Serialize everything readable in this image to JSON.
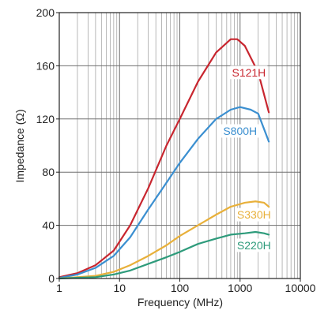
{
  "chart_data": {
    "type": "line",
    "title": "",
    "xlabel": "Frequency (MHz)",
    "ylabel": "Impedance (Ω)",
    "xscale": "log",
    "xlim": [
      1,
      10000
    ],
    "ylim": [
      0,
      200
    ],
    "grid": true,
    "legend": "inline labels",
    "x_ticks": [
      {
        "value": 1,
        "label": "1"
      },
      {
        "value": 10,
        "label": "10"
      },
      {
        "value": 100,
        "label": "100"
      },
      {
        "value": 1000,
        "label": "1000"
      },
      {
        "value": 10000,
        "label": "10000"
      }
    ],
    "y_ticks": [
      {
        "value": 0,
        "label": "0"
      },
      {
        "value": 40,
        "label": "40"
      },
      {
        "value": 80,
        "label": "80"
      },
      {
        "value": 120,
        "label": "120"
      },
      {
        "value": 160,
        "label": "160"
      },
      {
        "value": 200,
        "label": "200"
      }
    ],
    "series": [
      {
        "name": "S121H",
        "color": "#c8262f",
        "label_at": [
          1400,
          155
        ],
        "points": [
          [
            1,
            1
          ],
          [
            2,
            4
          ],
          [
            4,
            10
          ],
          [
            8,
            21
          ],
          [
            15,
            40
          ],
          [
            30,
            68
          ],
          [
            60,
            100
          ],
          [
            100,
            120
          ],
          [
            200,
            148
          ],
          [
            400,
            170
          ],
          [
            700,
            180
          ],
          [
            900,
            180
          ],
          [
            1200,
            175
          ],
          [
            2000,
            155
          ],
          [
            3000,
            125
          ]
        ]
      },
      {
        "name": "S800H",
        "color": "#3b8fd0",
        "label_at": [
          1000,
          111
        ],
        "points": [
          [
            1,
            0.5
          ],
          [
            2,
            3
          ],
          [
            4,
            8
          ],
          [
            8,
            17
          ],
          [
            15,
            31
          ],
          [
            30,
            52
          ],
          [
            60,
            72
          ],
          [
            100,
            87
          ],
          [
            200,
            105
          ],
          [
            400,
            120
          ],
          [
            700,
            127
          ],
          [
            1000,
            129
          ],
          [
            1500,
            127
          ],
          [
            2000,
            124
          ],
          [
            3000,
            103
          ]
        ]
      },
      {
        "name": "S330H",
        "color": "#e8b03a",
        "label_at": [
          1700,
          48
        ],
        "points": [
          [
            1,
            0
          ],
          [
            2,
            1
          ],
          [
            4,
            2
          ],
          [
            8,
            5
          ],
          [
            15,
            10
          ],
          [
            30,
            17
          ],
          [
            60,
            25
          ],
          [
            100,
            32
          ],
          [
            200,
            40
          ],
          [
            400,
            48
          ],
          [
            700,
            54
          ],
          [
            1200,
            57
          ],
          [
            1800,
            58
          ],
          [
            2500,
            57
          ],
          [
            3000,
            54
          ]
        ]
      },
      {
        "name": "S220H",
        "color": "#2e9b7b",
        "label_at": [
          1700,
          25
        ],
        "points": [
          [
            1,
            0
          ],
          [
            2,
            0.5
          ],
          [
            4,
            1
          ],
          [
            8,
            3
          ],
          [
            15,
            6
          ],
          [
            30,
            11
          ],
          [
            60,
            16
          ],
          [
            100,
            20
          ],
          [
            200,
            26
          ],
          [
            400,
            30
          ],
          [
            700,
            33
          ],
          [
            1200,
            34
          ],
          [
            1800,
            35
          ],
          [
            2500,
            34
          ],
          [
            3000,
            33
          ]
        ]
      }
    ]
  }
}
